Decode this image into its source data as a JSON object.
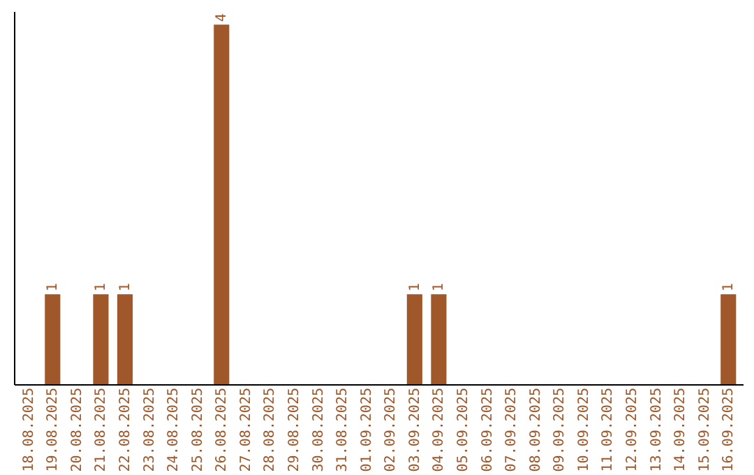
{
  "chart_data": {
    "type": "bar",
    "categories": [
      "18.08.2025",
      "19.08.2025",
      "20.08.2025",
      "21.08.2025",
      "22.08.2025",
      "23.08.2025",
      "24.08.2025",
      "25.08.2025",
      "26.08.2025",
      "27.08.2025",
      "28.08.2025",
      "29.08.2025",
      "30.08.2025",
      "31.08.2025",
      "01.09.2025",
      "02.09.2025",
      "03.09.2025",
      "04.09.2025",
      "05.09.2025",
      "06.09.2025",
      "07.09.2025",
      "08.09.2025",
      "09.09.2025",
      "10.09.2025",
      "11.09.2025",
      "12.09.2025",
      "13.09.2025",
      "14.09.2025",
      "15.09.2025",
      "16.09.2025"
    ],
    "values": [
      0,
      1,
      0,
      1,
      1,
      0,
      0,
      0,
      4,
      0,
      0,
      0,
      0,
      0,
      0,
      0,
      1,
      1,
      0,
      0,
      0,
      0,
      0,
      0,
      0,
      0,
      0,
      0,
      0,
      1
    ],
    "value_labels": [
      null,
      "1",
      null,
      "1",
      "1",
      null,
      null,
      null,
      "4",
      null,
      null,
      null,
      null,
      null,
      null,
      null,
      "1",
      "1",
      null,
      null,
      null,
      null,
      null,
      null,
      null,
      null,
      null,
      null,
      null,
      "1"
    ],
    "color": "#a0572a",
    "ylim": [
      0,
      4.15
    ],
    "tick_labels": "x",
    "grid": false
  }
}
